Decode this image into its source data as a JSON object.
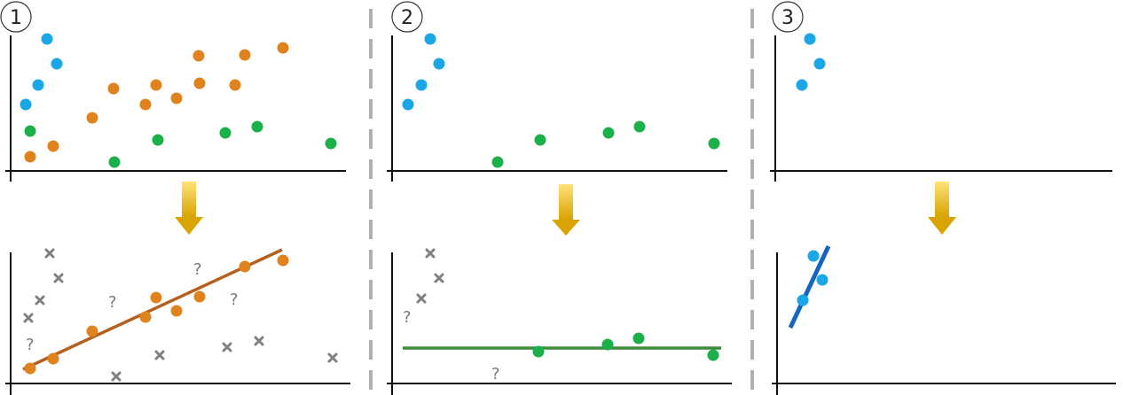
{
  "colors": {
    "blue": "#1ba6e6",
    "orange": "#e0831f",
    "green": "#1bb04a",
    "gray": "#808080",
    "orange_line": "#b5611d",
    "green_line": "#3d8b3d",
    "blue_line": "#1565c0",
    "axis": "#111111",
    "divider": "#b0b0b0",
    "arrow_top": "#ffe27a",
    "arrow_bottom": "#d9a300"
  },
  "panels": [
    {
      "step": "1"
    },
    {
      "step": "2"
    },
    {
      "step": "3"
    }
  ],
  "unknown_mark": "?"
}
